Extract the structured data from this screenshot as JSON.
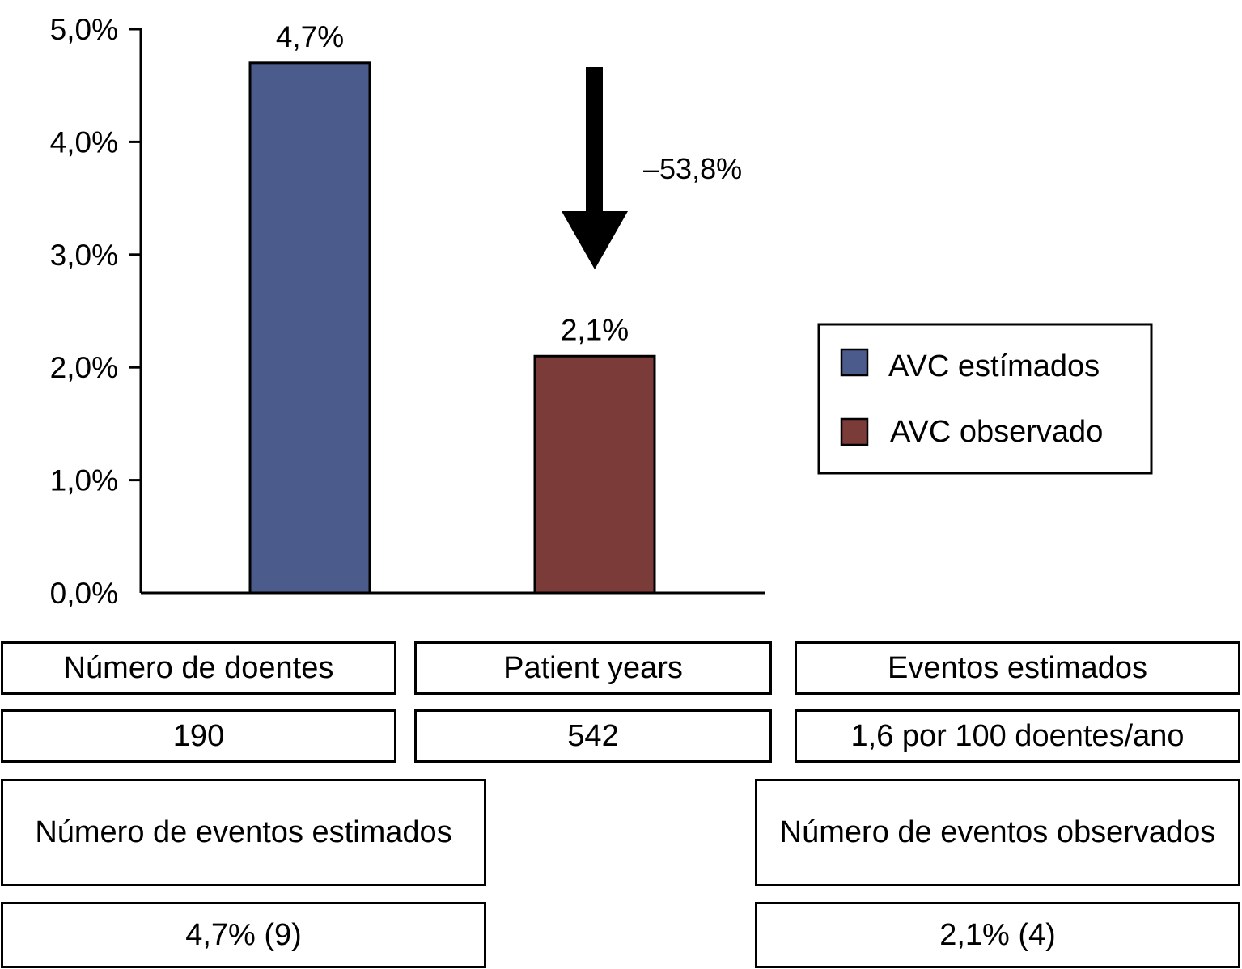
{
  "chart_data": {
    "type": "bar",
    "categories": [
      "AVC estímados",
      "AVC observado"
    ],
    "values": [
      4.7,
      2.1
    ],
    "value_labels": [
      "4,7%",
      "2,1%"
    ],
    "colors": [
      "#4b5c8c",
      "#7b3b38"
    ],
    "ylim": [
      0,
      5
    ],
    "yticks": [
      0,
      1,
      2,
      3,
      4,
      5
    ],
    "ytick_labels": [
      "0,0%",
      "1,0%",
      "2,0%",
      "3,0%",
      "4,0%",
      "5,0%"
    ],
    "xlabel": "",
    "ylabel": "",
    "grid": false,
    "legend": {
      "placement": "right",
      "entries": [
        {
          "label": "AVC estímados",
          "color": "#4b5c8c"
        },
        {
          "label": "AVC observado",
          "color": "#7b3b38"
        }
      ]
    },
    "annotation": {
      "text": "–53,8%",
      "arrow": "down"
    }
  },
  "table": {
    "row1": {
      "patients_header": "Número de doentes",
      "patient_years_header": "Patient years",
      "estimated_events_header": "Eventos estimados"
    },
    "row2": {
      "patients_value": "190",
      "patient_years_value": "542",
      "estimated_events_value": "1,6 por 100 doentes/ano"
    },
    "row3": {
      "estimated_count_header": "Número de eventos estimados",
      "observed_count_header": "Número de eventos observados"
    },
    "row4": {
      "estimated_count_value": "4,7% (9)",
      "observed_count_value": "2,1% (4)"
    }
  }
}
